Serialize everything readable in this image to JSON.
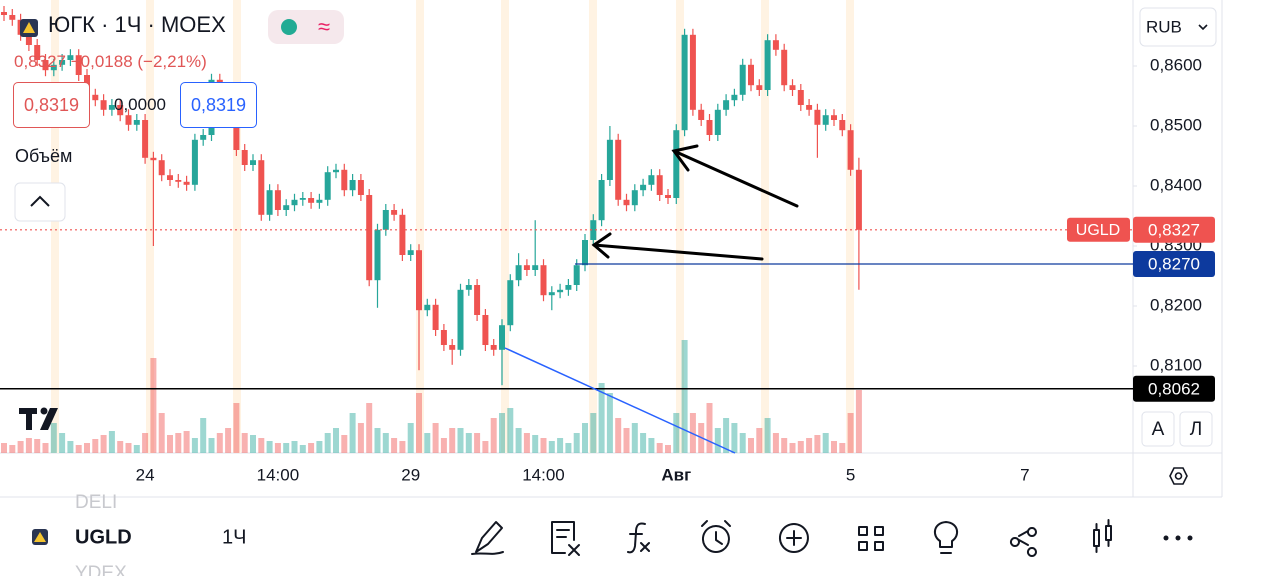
{
  "header": {
    "title": "ЮГК · 1Ч · MOEX",
    "change": "0,8327 −0,0188 (−2,21%)",
    "bid": "0,8319",
    "spread": "0,0000",
    "ask": "0,8319",
    "volume_label": "Объём"
  },
  "chart_data": {
    "type": "candlestick",
    "categories": [
      null,
      null,
      null,
      null,
      null,
      null,
      null,
      null,
      null,
      null,
      null,
      null,
      null,
      null,
      null,
      null,
      null,
      "24",
      null,
      null,
      null,
      null,
      null,
      null,
      null,
      null,
      null,
      null,
      null,
      null,
      null,
      null,
      null,
      "14:00",
      null,
      null,
      null,
      null,
      null,
      null,
      null,
      null,
      null,
      null,
      null,
      null,
      null,
      null,
      null,
      "29",
      null,
      null,
      null,
      null,
      null,
      null,
      null,
      null,
      null,
      null,
      null,
      null,
      null,
      null,
      null,
      "14:00",
      null,
      null,
      null,
      null,
      null,
      null,
      null,
      null,
      null,
      null,
      null,
      null,
      null,
      null,
      null,
      "Авг",
      null,
      null,
      null,
      null,
      null,
      null,
      null,
      null,
      null,
      null,
      null,
      null,
      null,
      null,
      null,
      null,
      null,
      null,
      null,
      null,
      "5",
      null,
      null,
      null,
      null,
      null,
      null,
      null,
      null,
      null,
      null,
      null,
      null,
      null,
      null,
      null,
      null,
      null,
      null,
      null,
      null,
      "7"
    ],
    "open": [
      0.869,
      0.8685,
      0.8677,
      0.8652,
      0.8635,
      0.861,
      0.8593,
      0.8602,
      0.861,
      0.8618,
      0.8585,
      0.8552,
      0.8543,
      0.8527,
      0.8535,
      0.8518,
      0.8502,
      0.851,
      0.8447,
      0.8443,
      0.8418,
      0.841,
      0.8407,
      0.8402,
      0.8477,
      0.8485,
      0.8577,
      0.856,
      0.8527,
      0.846,
      0.8435,
      0.8443,
      0.8352,
      0.8393,
      0.836,
      0.8368,
      0.8377,
      0.838,
      0.8372,
      0.8377,
      0.8423,
      0.8427,
      0.8393,
      0.841,
      0.8385,
      0.8243,
      0.8327,
      0.836,
      0.8352,
      0.8285,
      0.8293,
      0.8193,
      0.8202,
      0.816,
      0.8135,
      0.8127,
      0.8227,
      0.8235,
      0.8185,
      0.8135,
      0.8127,
      0.8168,
      0.8243,
      0.8268,
      0.826,
      0.8268,
      0.8218,
      0.8223,
      0.8227,
      0.8235,
      0.8268,
      0.831,
      0.8343,
      0.841,
      0.8477,
      0.8377,
      0.8368,
      0.8393,
      0.8402,
      0.8418,
      0.8385,
      0.838,
      0.8493,
      0.8652,
      0.8527,
      0.851,
      0.8485,
      0.8527,
      0.8543,
      0.8552,
      0.8602,
      0.8568,
      0.856,
      0.8643,
      0.8627,
      0.8568,
      0.856,
      0.8535,
      0.8527,
      0.8502,
      0.8518,
      0.851,
      0.8493,
      0.8427,
      null,
      null,
      null,
      null,
      null,
      null,
      null,
      null,
      null,
      null,
      null,
      null,
      null,
      null,
      null,
      null,
      null,
      null,
      null,
      null
    ],
    "high": [
      0.87,
      0.8695,
      0.8687,
      0.8662,
      0.8645,
      0.862,
      0.8612,
      0.862,
      0.8628,
      0.8628,
      0.8595,
      0.8562,
      0.8553,
      0.8545,
      0.8545,
      0.8528,
      0.852,
      0.852,
      0.8457,
      0.8453,
      0.8428,
      0.842,
      0.8417,
      0.8487,
      0.8495,
      0.8587,
      0.8587,
      0.857,
      0.8537,
      0.847,
      0.8453,
      0.8453,
      0.8403,
      0.8403,
      0.8378,
      0.8387,
      0.839,
      0.839,
      0.8387,
      0.8433,
      0.8437,
      0.8437,
      0.842,
      0.842,
      0.8395,
      0.8337,
      0.837,
      0.837,
      0.8362,
      0.8303,
      0.8303,
      0.8212,
      0.8212,
      0.817,
      0.8145,
      0.8237,
      0.8245,
      0.8245,
      0.8195,
      0.8145,
      0.8178,
      0.8253,
      0.8288,
      0.8278,
      0.8343,
      0.8278,
      0.8233,
      0.8237,
      0.8245,
      0.8278,
      0.832,
      0.8353,
      0.842,
      0.85,
      0.8487,
      0.8387,
      0.8403,
      0.8412,
      0.8428,
      0.8428,
      0.8395,
      0.8503,
      0.8662,
      0.8662,
      0.8537,
      0.852,
      0.8537,
      0.8553,
      0.8562,
      0.8612,
      0.8612,
      0.8578,
      0.8653,
      0.8653,
      0.8637,
      0.8578,
      0.857,
      0.8545,
      0.8537,
      0.8528,
      0.8528,
      0.852,
      0.8503,
      0.8447,
      null,
      null,
      null,
      null,
      null,
      null,
      null,
      null,
      null,
      null,
      null,
      null,
      null,
      null,
      null,
      null,
      null,
      null,
      null,
      null
    ],
    "low": [
      0.8675,
      0.8667,
      0.8642,
      0.8625,
      0.86,
      0.8583,
      0.8583,
      0.8592,
      0.86,
      0.8575,
      0.8542,
      0.8533,
      0.8517,
      0.8517,
      0.8508,
      0.8492,
      0.8492,
      0.8437,
      0.83,
      0.8408,
      0.84,
      0.8397,
      0.8392,
      0.8392,
      0.8467,
      0.8475,
      0.855,
      0.8517,
      0.845,
      0.8425,
      0.8425,
      0.8342,
      0.8342,
      0.835,
      0.835,
      0.8358,
      0.8367,
      0.8362,
      0.8362,
      0.8367,
      0.8413,
      0.8383,
      0.8383,
      0.8375,
      0.8233,
      0.8197,
      0.8317,
      0.8342,
      0.8275,
      0.8275,
      0.8093,
      0.8183,
      0.815,
      0.8125,
      0.8102,
      0.8117,
      0.8217,
      0.8175,
      0.8125,
      0.8117,
      0.8068,
      0.8158,
      0.8233,
      0.825,
      0.825,
      0.8208,
      0.8193,
      0.8213,
      0.8217,
      0.8225,
      0.8258,
      0.83,
      0.8333,
      0.84,
      0.8367,
      0.8358,
      0.8358,
      0.8383,
      0.8392,
      0.8375,
      0.837,
      0.837,
      0.8483,
      0.8517,
      0.85,
      0.8475,
      0.8475,
      0.8517,
      0.8533,
      0.8542,
      0.8558,
      0.855,
      0.855,
      0.8617,
      0.8558,
      0.855,
      0.8525,
      0.8517,
      0.8447,
      0.8492,
      0.85,
      0.8483,
      0.8417,
      0.8227,
      null,
      null,
      null,
      null,
      null,
      null,
      null,
      null,
      null,
      null,
      null,
      null,
      null,
      null,
      null,
      null,
      null,
      null,
      null,
      null
    ],
    "close": [
      0.8685,
      0.8677,
      0.8652,
      0.8635,
      0.861,
      0.8593,
      0.8602,
      0.861,
      0.8618,
      0.8585,
      0.8552,
      0.8543,
      0.8527,
      0.8535,
      0.8518,
      0.8502,
      0.851,
      0.8447,
      0.8443,
      0.8418,
      0.841,
      0.8407,
      0.8402,
      0.8477,
      0.8485,
      0.8577,
      0.856,
      0.8527,
      0.846,
      0.8435,
      0.8443,
      0.8352,
      0.8393,
      0.836,
      0.8368,
      0.8377,
      0.838,
      0.8372,
      0.8377,
      0.8423,
      0.8427,
      0.8393,
      0.841,
      0.8385,
      0.8243,
      0.8327,
      0.836,
      0.8352,
      0.8285,
      0.8293,
      0.8193,
      0.8202,
      0.816,
      0.8135,
      0.8127,
      0.8227,
      0.8235,
      0.8185,
      0.8135,
      0.8127,
      0.8168,
      0.8243,
      0.8268,
      0.826,
      0.8268,
      0.8218,
      0.8223,
      0.8227,
      0.8235,
      0.8268,
      0.831,
      0.8343,
      0.841,
      0.8477,
      0.8377,
      0.8368,
      0.8393,
      0.8402,
      0.8418,
      0.8385,
      0.838,
      0.8493,
      0.8652,
      0.8527,
      0.851,
      0.8485,
      0.8527,
      0.8543,
      0.8552,
      0.8602,
      0.8568,
      0.856,
      0.8643,
      0.8627,
      0.8568,
      0.856,
      0.8535,
      0.8527,
      0.8502,
      0.8518,
      0.851,
      0.8493,
      0.8427,
      0.8327,
      null,
      null,
      null,
      null,
      null,
      null,
      null,
      null,
      null,
      null,
      null,
      null,
      null,
      null,
      null,
      null,
      null,
      null,
      null,
      null
    ],
    "volume": [
      10,
      8,
      12,
      15,
      14,
      10,
      30,
      20,
      12,
      8,
      10,
      14,
      18,
      22,
      12,
      10,
      8,
      20,
      95,
      40,
      18,
      20,
      22,
      15,
      35,
      15,
      20,
      25,
      50,
      20,
      18,
      15,
      12,
      10,
      10,
      12,
      8,
      10,
      12,
      20,
      25,
      18,
      40,
      30,
      50,
      25,
      20,
      15,
      12,
      30,
      60,
      20,
      30,
      15,
      25,
      25,
      20,
      20,
      12,
      35,
      40,
      45,
      25,
      20,
      18,
      15,
      12,
      15,
      10,
      20,
      30,
      40,
      70,
      60,
      35,
      25,
      30,
      20,
      15,
      10,
      8,
      40,
      113,
      40,
      30,
      50,
      25,
      35,
      30,
      20,
      15,
      25,
      35,
      20,
      15,
      10,
      12,
      15,
      18,
      20,
      12,
      10,
      40,
      63,
      null,
      null,
      null,
      null,
      null,
      null,
      null,
      null,
      null,
      null,
      null,
      null,
      null,
      null,
      null,
      null,
      null,
      null,
      null,
      null
    ],
    "ylim": [
      0.7955,
      0.871
    ],
    "yticks": [
      {
        "value": 0.81,
        "label": "0,8100"
      },
      {
        "value": 0.82,
        "label": "0,8200"
      },
      {
        "value": 0.83,
        "label": "0,8300"
      },
      {
        "value": 0.84,
        "label": "0,8400"
      },
      {
        "value": 0.85,
        "label": "0,8500"
      },
      {
        "value": 0.86,
        "label": "0,8600"
      }
    ],
    "up_color": "#26a69a",
    "down_color": "#ef5350",
    "currency": "RUB",
    "levels": [
      {
        "name": "UGLD",
        "value": 0.8327,
        "label": "0,8327",
        "color": "#ef5350",
        "line": "dotted"
      },
      {
        "value": 0.827,
        "label": "0,8270",
        "color": "#0d3a9e",
        "line": "solid"
      },
      {
        "value": 0.8062,
        "label": "0,8062",
        "color": "#000000",
        "line": "solid"
      }
    ],
    "scale_buttons": [
      "A",
      "Л"
    ]
  },
  "toolbar": {
    "symbol": "UGLD",
    "interval": "1Ч",
    "above": "DELI",
    "below": "YDEX"
  }
}
